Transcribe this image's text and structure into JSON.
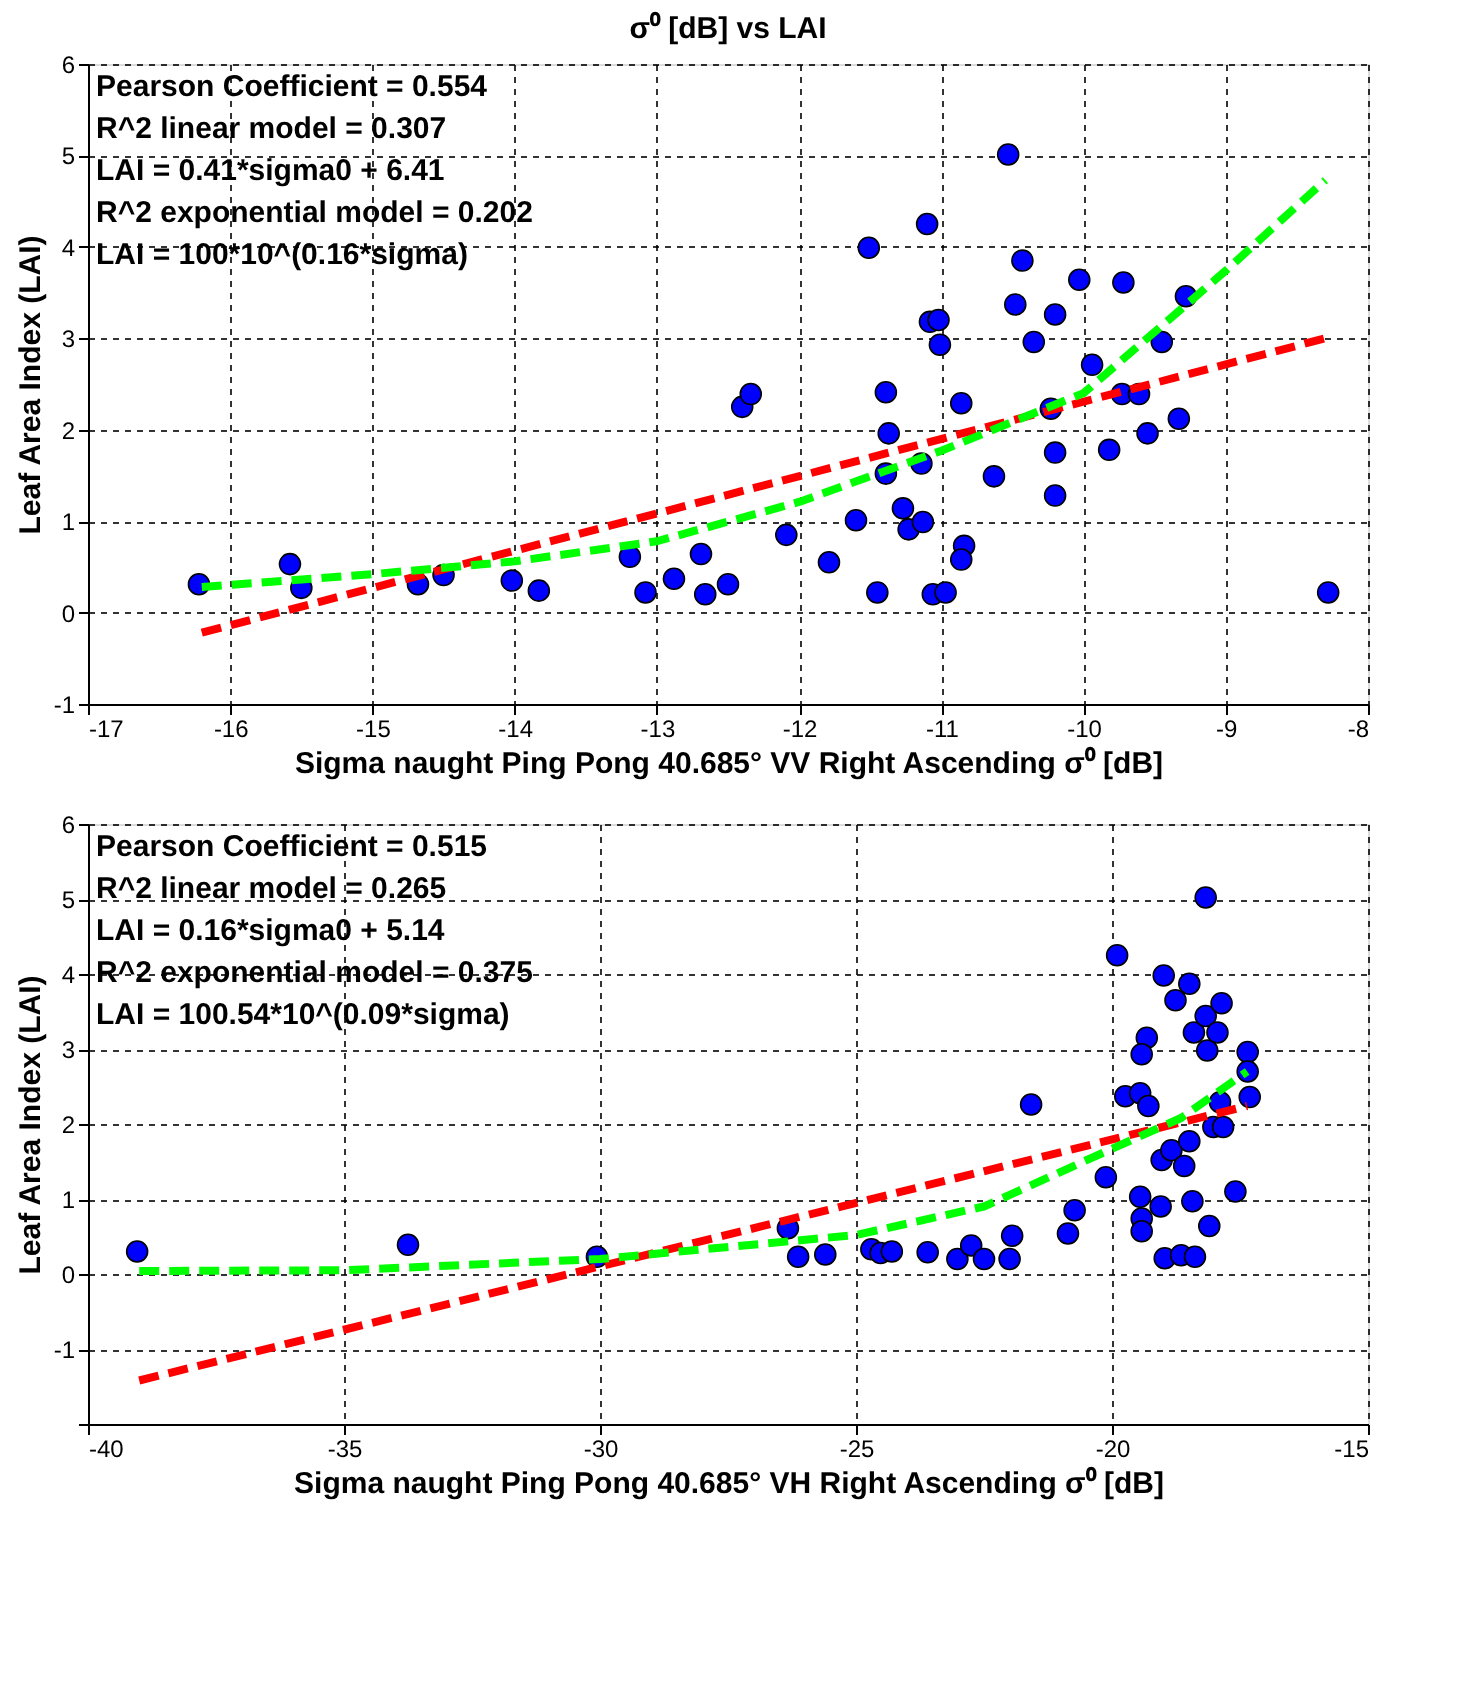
{
  "chart_data": [
    {
      "type": "scatter",
      "title": "σ⁰ [dB] vs LAI",
      "xlabel": "Sigma naught Ping Pong 40.685° VV Right Ascending σ⁰ [dB]",
      "ylabel": "Leaf Area Index (LAI)",
      "xlim": [
        -17,
        -8
      ],
      "xticks": [
        -17,
        -16,
        -15,
        -14,
        -13,
        -12,
        -11,
        -10,
        -9,
        -8
      ],
      "ylim": [
        -1,
        6
      ],
      "yticks": [
        -1,
        0,
        1,
        2,
        3,
        4,
        5,
        6
      ],
      "grid": true,
      "annotations": [
        "Pearson Coefficient = 0.554",
        "R^2 linear model = 0.307",
        "LAI = 0.41*sigma0 + 6.41",
        "R^2 exponential model = 0.202",
        "LAI = 100*10^(0.16*sigma)"
      ],
      "series": [
        {
          "type": "scatter",
          "color": "#0000ff",
          "marker": "circle",
          "x": [
            -16.22,
            -15.58,
            -15.5,
            -14.68,
            -14.5,
            -14.02,
            -13.83,
            -13.19,
            -13.08,
            -12.88,
            -12.69,
            -12.66,
            -12.5,
            -12.4,
            -12.34,
            -12.09,
            -11.79,
            -11.6,
            -11.51,
            -11.45,
            -11.39,
            -11.37,
            -11.39,
            -11.27,
            -11.23,
            -11.13,
            -11.14,
            -11.1,
            -11.08,
            -11.02,
            -11.01,
            -11.06,
            -10.97,
            -10.86,
            -10.84,
            -10.86,
            -10.63,
            -10.53,
            -10.48,
            -10.43,
            -10.35,
            -10.23,
            -10.2,
            -10.2,
            -10.2,
            -10.03,
            -9.94,
            -9.82,
            -9.72,
            -9.73,
            -9.61,
            -9.55,
            -9.45,
            -9.33,
            -9.28,
            -8.28
          ],
          "values": [
            0.31,
            0.53,
            0.27,
            0.31,
            0.41,
            0.35,
            0.24,
            0.61,
            0.22,
            0.37,
            0.64,
            0.2,
            0.31,
            2.25,
            2.39,
            0.85,
            0.55,
            1.01,
            3.99,
            0.22,
            2.41,
            1.96,
            1.52,
            1.14,
            0.91,
            0.99,
            1.63,
            4.25,
            3.18,
            3.2,
            2.93,
            0.2,
            0.22,
            2.29,
            0.73,
            0.58,
            1.49,
            5.01,
            3.37,
            3.85,
            2.96,
            2.23,
            3.26,
            1.75,
            1.28,
            3.64,
            2.71,
            1.78,
            3.61,
            2.39,
            2.39,
            1.96,
            2.96,
            2.12,
            3.46,
            0.22
          ]
        },
        {
          "type": "line",
          "color": "#ff0000",
          "line_style": "dashed",
          "marker": "none",
          "x": [
            -16.2,
            -8.3
          ],
          "values": [
            -0.22,
            3.0
          ]
        },
        {
          "type": "line",
          "color": "#00ff00",
          "line_style": "dashed",
          "marker": "none",
          "x": [
            -16.2,
            -15,
            -14,
            -13,
            -12,
            -11,
            -10,
            -9,
            -8.3
          ],
          "values": [
            0.28,
            0.42,
            0.56,
            0.78,
            1.21,
            1.77,
            2.4,
            3.74,
            4.73
          ]
        }
      ]
    },
    {
      "type": "scatter",
      "xlabel": "Sigma naught Ping Pong 40.685° VH Right Ascending σ⁰ [dB]",
      "ylabel": "Leaf Area Index (LAI)",
      "xlim": [
        -40,
        -15
      ],
      "xticks": [
        -40,
        -35,
        -30,
        -25,
        -20,
        -15
      ],
      "ylim": [
        -2,
        6
      ],
      "yticks": [
        {
          "value": -2,
          "label": null
        },
        -1,
        0,
        1,
        2,
        3,
        4,
        5,
        6
      ],
      "grid": true,
      "annotations": [
        "Pearson Coefficient = 0.515",
        "R^2 linear model = 0.265",
        "LAI = 0.16*sigma0 + 5.14",
        "R^2 exponential model = 0.375",
        "LAI = 100.54*10^(0.09*sigma)"
      ],
      "series": [
        {
          "type": "scatter",
          "color": "#0000ff",
          "marker": "circle",
          "x": [
            -39.04,
            -33.75,
            -30.06,
            -26.33,
            -26.13,
            -25.6,
            -24.7,
            -24.52,
            -24.3,
            -23.6,
            -23.02,
            -22.75,
            -22.5,
            -22.0,
            -21.95,
            -21.58,
            -20.86,
            -20.73,
            -20.12,
            -19.9,
            -19.74,
            -19.45,
            -19.29,
            -19.45,
            -19.32,
            -19.42,
            -19.42,
            -19.42,
            -19.05,
            -18.99,
            -18.97,
            -19.03,
            -18.84,
            -18.76,
            -18.65,
            -18.59,
            -18.49,
            -18.49,
            -18.43,
            -18.38,
            -18.4,
            -18.17,
            -18.17,
            -18.14,
            -18.1,
            -17.94,
            -18.02,
            -17.89,
            -17.83,
            -17.86,
            -17.59,
            -17.35,
            -17.35,
            -17.31
          ],
          "values": [
            0.3,
            0.39,
            0.23,
            0.61,
            0.23,
            0.26,
            0.33,
            0.28,
            0.3,
            0.29,
            0.2,
            0.38,
            0.2,
            0.2,
            0.51,
            2.26,
            0.54,
            0.85,
            1.29,
            4.25,
            2.37,
            2.41,
            2.24,
            1.03,
            3.15,
            2.93,
            0.74,
            0.57,
            0.9,
            3.98,
            0.21,
            1.52,
            1.65,
            3.65,
            0.25,
            1.44,
            3.87,
            1.77,
            0.97,
            0.23,
            3.22,
            5.02,
            3.44,
            2.98,
            0.64,
            3.22,
            1.96,
            2.29,
            1.96,
            3.61,
            1.1,
            2.96,
            2.7,
            2.36
          ]
        },
        {
          "type": "line",
          "color": "#ff0000",
          "line_style": "dashed",
          "marker": "none",
          "x": [
            -39.0,
            -17.36
          ],
          "values": [
            -1.42,
            2.24
          ]
        },
        {
          "type": "line",
          "color": "#00ff00",
          "line_style": "dashed",
          "marker": "none",
          "x": [
            -39.0,
            -35,
            -30,
            -25,
            -22.5,
            -20,
            -18.65,
            -17.36
          ],
          "values": [
            0.04,
            0.05,
            0.2,
            0.52,
            0.9,
            1.67,
            2.08,
            2.7
          ]
        }
      ]
    }
  ]
}
